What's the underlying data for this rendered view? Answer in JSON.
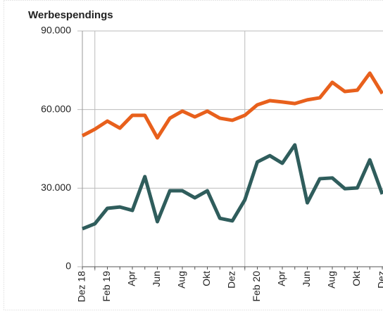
{
  "chart_data": {
    "type": "line",
    "title": "Werbespendings",
    "categories": [
      "Dez 18",
      null,
      "Feb 19",
      null,
      "Apr",
      null,
      "Jun",
      null,
      "Aug",
      null,
      "Okt",
      null,
      "Dez",
      null,
      "Feb 20",
      null,
      "Apr",
      null,
      "Jun",
      null,
      "Aug",
      null,
      "Okt",
      null,
      "Dez"
    ],
    "series": [
      {
        "color": "#e8601c",
        "values": [
          50000,
          52500,
          55600,
          52900,
          57800,
          57800,
          49200,
          56700,
          59400,
          57200,
          59400,
          56700,
          55900,
          57800,
          61800,
          63400,
          62900,
          62300,
          63700,
          64500,
          70400,
          66900,
          67400,
          73900,
          66100
        ]
      },
      {
        "color": "#2f5d5c",
        "values": [
          14500,
          16400,
          22300,
          22800,
          21500,
          34400,
          17200,
          29000,
          29000,
          26300,
          29000,
          18500,
          17500,
          25500,
          40000,
          42400,
          39500,
          46500,
          24400,
          33600,
          33900,
          29800,
          30100,
          40800,
          27700
        ]
      }
    ],
    "ylim": [
      0,
      90000
    ],
    "yticks": [
      0,
      {
        "value": 30000,
        "label": "30.000"
      },
      {
        "value": 60000,
        "label": "60.000"
      },
      {
        "value": 90000,
        "label": "90.000"
      }
    ],
    "grid": true
  }
}
